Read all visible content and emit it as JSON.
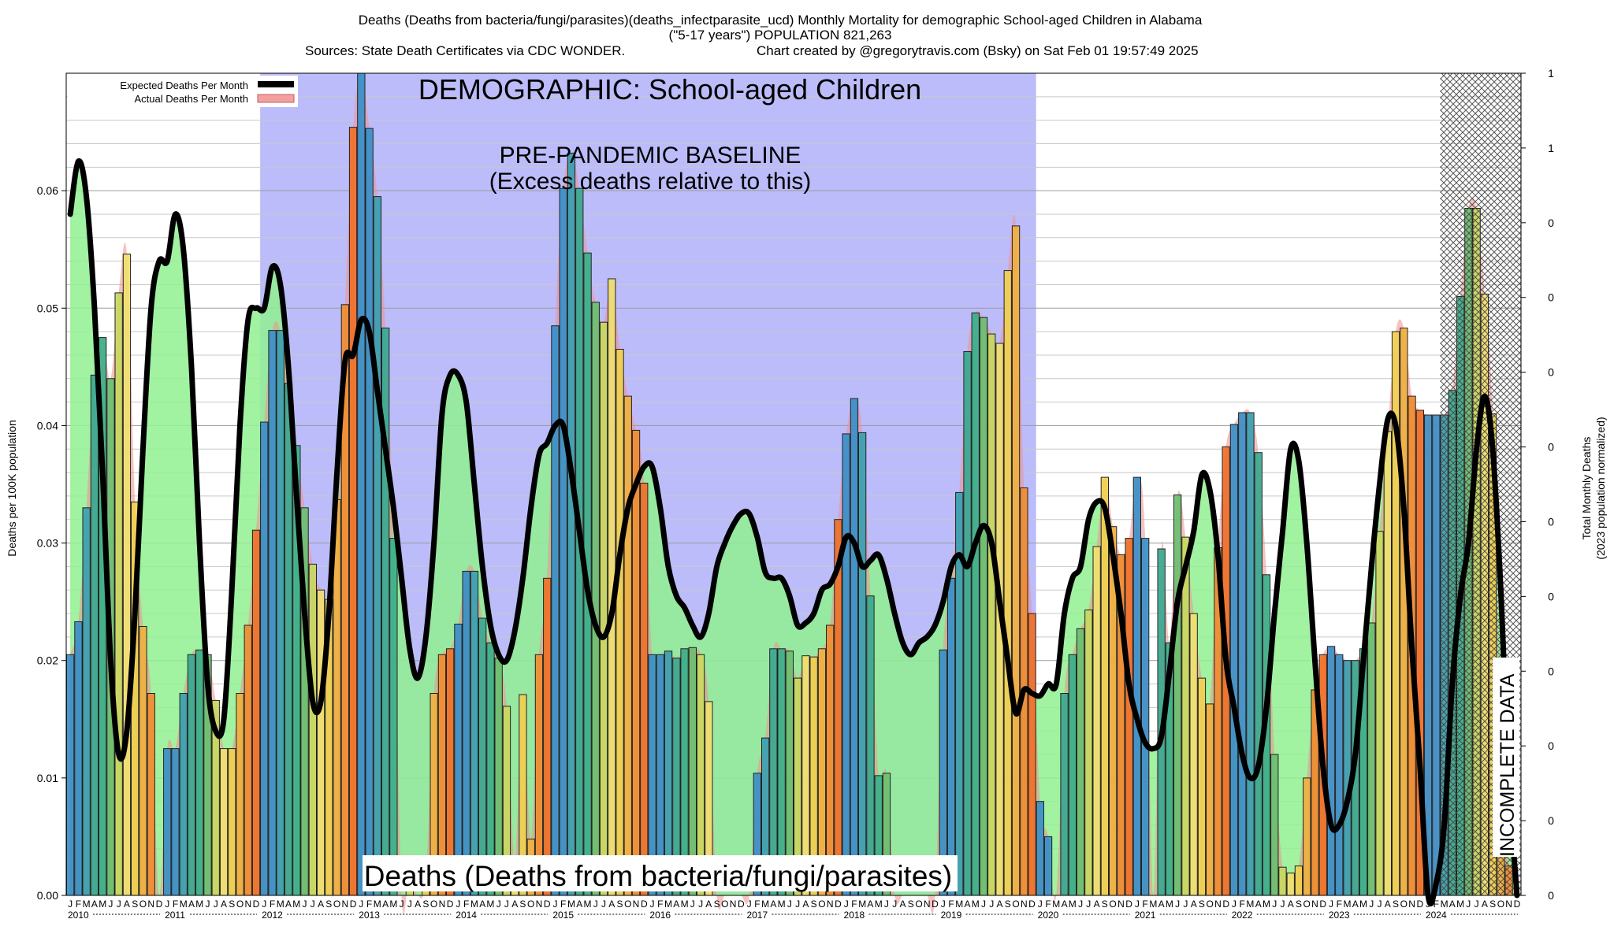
{
  "chart_data": {
    "type": "bar",
    "title": "Deaths (Deaths from bacteria/fungi/parasites)(deaths_infectparasite_ucd) Monthly Mortality for demographic School-aged Children in Alabama",
    "subtitle": "(\"5-17 years\") POPULATION 821,263",
    "sources": "Sources: State Death Certificates via CDC WONDER.",
    "credit": "Chart created by @gregorytravis.com (Bsky) on Sat Feb 01 19:57:49 2025",
    "ylabel": "Deaths per 100K population",
    "y2label_line1": "Total Monthly Deaths",
    "y2label_line2": "(2023 population normalized)",
    "ylim": [
      0,
      0.07
    ],
    "yticks": [
      "0.00",
      "0.01",
      "0.02",
      "0.03",
      "0.04",
      "0.05",
      "0.06"
    ],
    "y2ticks": [
      "0",
      "0",
      "0",
      "0",
      "0",
      "0",
      "0",
      "0",
      "0",
      "0",
      "1",
      "1"
    ],
    "years": [
      "2010",
      "2011",
      "2012",
      "2013",
      "2014",
      "2015",
      "2016",
      "2017",
      "2018",
      "2019",
      "2020",
      "2021",
      "2022",
      "2023",
      "2024"
    ],
    "month_letters": [
      "J",
      "F",
      "M",
      "A",
      "M",
      "J",
      "J",
      "A",
      "S",
      "O",
      "N",
      "D"
    ],
    "legend": [
      {
        "label": "Expected Deaths Per Month",
        "color": "#000000"
      },
      {
        "label": "Actual Deaths Per Month",
        "color": "#f4a0a0"
      }
    ],
    "demographic_label": "DEMOGRAPHIC: School-aged Children",
    "baseline_label_1": "PRE-PANDEMIC BASELINE",
    "baseline_label_2": "(Excess deaths relative to this)",
    "cause_label": "Deaths (Deaths from bacteria/fungi/parasites)",
    "incomplete_label": "INCOMPLETE DATA",
    "baseline_period": [
      "2012-01",
      "2019-12"
    ],
    "incomplete_period": [
      "2024-03",
      "2024-12"
    ],
    "actual": [
      0.0205,
      0.0233,
      0.033,
      0.0443,
      0.0475,
      0.044,
      0.0513,
      0.0546,
      0.0335,
      0.0229,
      0.0172,
      0.0,
      0.0125,
      0.0125,
      0.0172,
      0.0205,
      0.0209,
      0.0205,
      0.0166,
      0.0125,
      0.0125,
      0.0172,
      0.023,
      0.0311,
      0.0403,
      0.0481,
      0.0481,
      0.0436,
      0.0383,
      0.033,
      0.0282,
      0.026,
      0.0252,
      0.0337,
      0.0503,
      0.0654,
      0.07,
      0.0653,
      0.0595,
      0.0483,
      0.0304,
      0.0,
      0.0022,
      0.0,
      0.0017,
      0.0172,
      0.0205,
      0.021,
      0.0231,
      0.0276,
      0.0276,
      0.0236,
      0.0215,
      0.0202,
      0.0161,
      0.0031,
      0.0171,
      0.0048,
      0.0205,
      0.027,
      0.0485,
      0.0602,
      0.0632,
      0.0602,
      0.0547,
      0.0505,
      0.0488,
      0.0525,
      0.0465,
      0.0425,
      0.0396,
      0.0351,
      0.0205,
      0.0205,
      0.0208,
      0.0202,
      0.021,
      0.0211,
      0.0205,
      0.0165,
      0.0,
      0.0,
      0.0,
      0.0,
      0.0,
      0.0104,
      0.0134,
      0.021,
      0.021,
      0.0208,
      0.0185,
      0.0204,
      0.0203,
      0.021,
      0.023,
      0.032,
      0.0393,
      0.0423,
      0.0394,
      0.0255,
      0.0102,
      0.0104,
      0.0,
      0.0,
      0.0,
      0.0,
      0.0,
      0.0,
      0.0209,
      0.027,
      0.0343,
      0.0463,
      0.0496,
      0.0492,
      0.0478,
      0.047,
      0.0532,
      0.057,
      0.0347,
      0.024,
      0.008,
      0.005,
      0.0,
      0.0172,
      0.0205,
      0.0227,
      0.0243,
      0.0297,
      0.0356,
      0.0314,
      0.029,
      0.0304,
      0.0356,
      0.0304,
      0.0,
      0.0295,
      0.0215,
      0.0341,
      0.0305,
      0.024,
      0.0185,
      0.0163,
      0.0296,
      0.0382,
      0.0401,
      0.0411,
      0.0411,
      0.0377,
      0.0273,
      0.012,
      0.0024,
      0.0019,
      0.0025,
      0.01,
      0.0175,
      0.0205,
      0.0212,
      0.0205,
      0.02,
      0.02,
      0.021,
      0.0232,
      0.031,
      0.0395,
      0.048,
      0.0483,
      0.0425,
      0.0413,
      0.0409,
      0.0409,
      0.0409,
      0.043,
      0.051,
      0.0585,
      0.0585,
      0.0512,
      0.041,
      0.0125,
      0.0025,
      0.0
    ],
    "expected": [
      0.058,
      0.0625,
      0.0595,
      0.05,
      0.036,
      0.02,
      0.012,
      0.014,
      0.024,
      0.038,
      0.05,
      0.054,
      0.054,
      0.058,
      0.055,
      0.045,
      0.03,
      0.018,
      0.014,
      0.015,
      0.026,
      0.04,
      0.049,
      0.05,
      0.05,
      0.0535,
      0.052,
      0.045,
      0.034,
      0.024,
      0.0165,
      0.0165,
      0.024,
      0.036,
      0.0455,
      0.046,
      0.049,
      0.048,
      0.043,
      0.038,
      0.033,
      0.027,
      0.021,
      0.0185,
      0.022,
      0.03,
      0.041,
      0.0443,
      0.0443,
      0.042,
      0.035,
      0.028,
      0.023,
      0.0205,
      0.02,
      0.0225,
      0.027,
      0.033,
      0.0375,
      0.0385,
      0.04,
      0.04,
      0.036,
      0.031,
      0.026,
      0.023,
      0.022,
      0.024,
      0.029,
      0.033,
      0.035,
      0.0365,
      0.0365,
      0.033,
      0.028,
      0.0255,
      0.0245,
      0.023,
      0.022,
      0.024,
      0.028,
      0.03,
      0.0315,
      0.0325,
      0.0325,
      0.0305,
      0.0275,
      0.027,
      0.027,
      0.0255,
      0.023,
      0.0232,
      0.024,
      0.026,
      0.0265,
      0.028,
      0.0305,
      0.03,
      0.028,
      0.0285,
      0.029,
      0.027,
      0.024,
      0.0215,
      0.0205,
      0.0215,
      0.022,
      0.023,
      0.025,
      0.028,
      0.029,
      0.028,
      0.03,
      0.0315,
      0.03,
      0.025,
      0.02,
      0.0155,
      0.0175,
      0.0172,
      0.017,
      0.018,
      0.018,
      0.024,
      0.027,
      0.028,
      0.032,
      0.0335,
      0.033,
      0.029,
      0.024,
      0.018,
      0.015,
      0.013,
      0.0125,
      0.0135,
      0.019,
      0.025,
      0.028,
      0.031,
      0.0358,
      0.0345,
      0.029,
      0.02,
      0.016,
      0.012,
      0.01,
      0.011,
      0.016,
      0.024,
      0.031,
      0.038,
      0.037,
      0.03,
      0.02,
      0.011,
      0.006,
      0.006,
      0.008,
      0.012,
      0.02,
      0.028,
      0.035,
      0.0405,
      0.04,
      0.033,
      0.021,
      0.011,
      0.0,
      0.001,
      0.006,
      0.018,
      0.0255,
      0.03,
      0.038,
      0.0425,
      0.038,
      0.026,
      0.01,
      0.0
    ]
  }
}
